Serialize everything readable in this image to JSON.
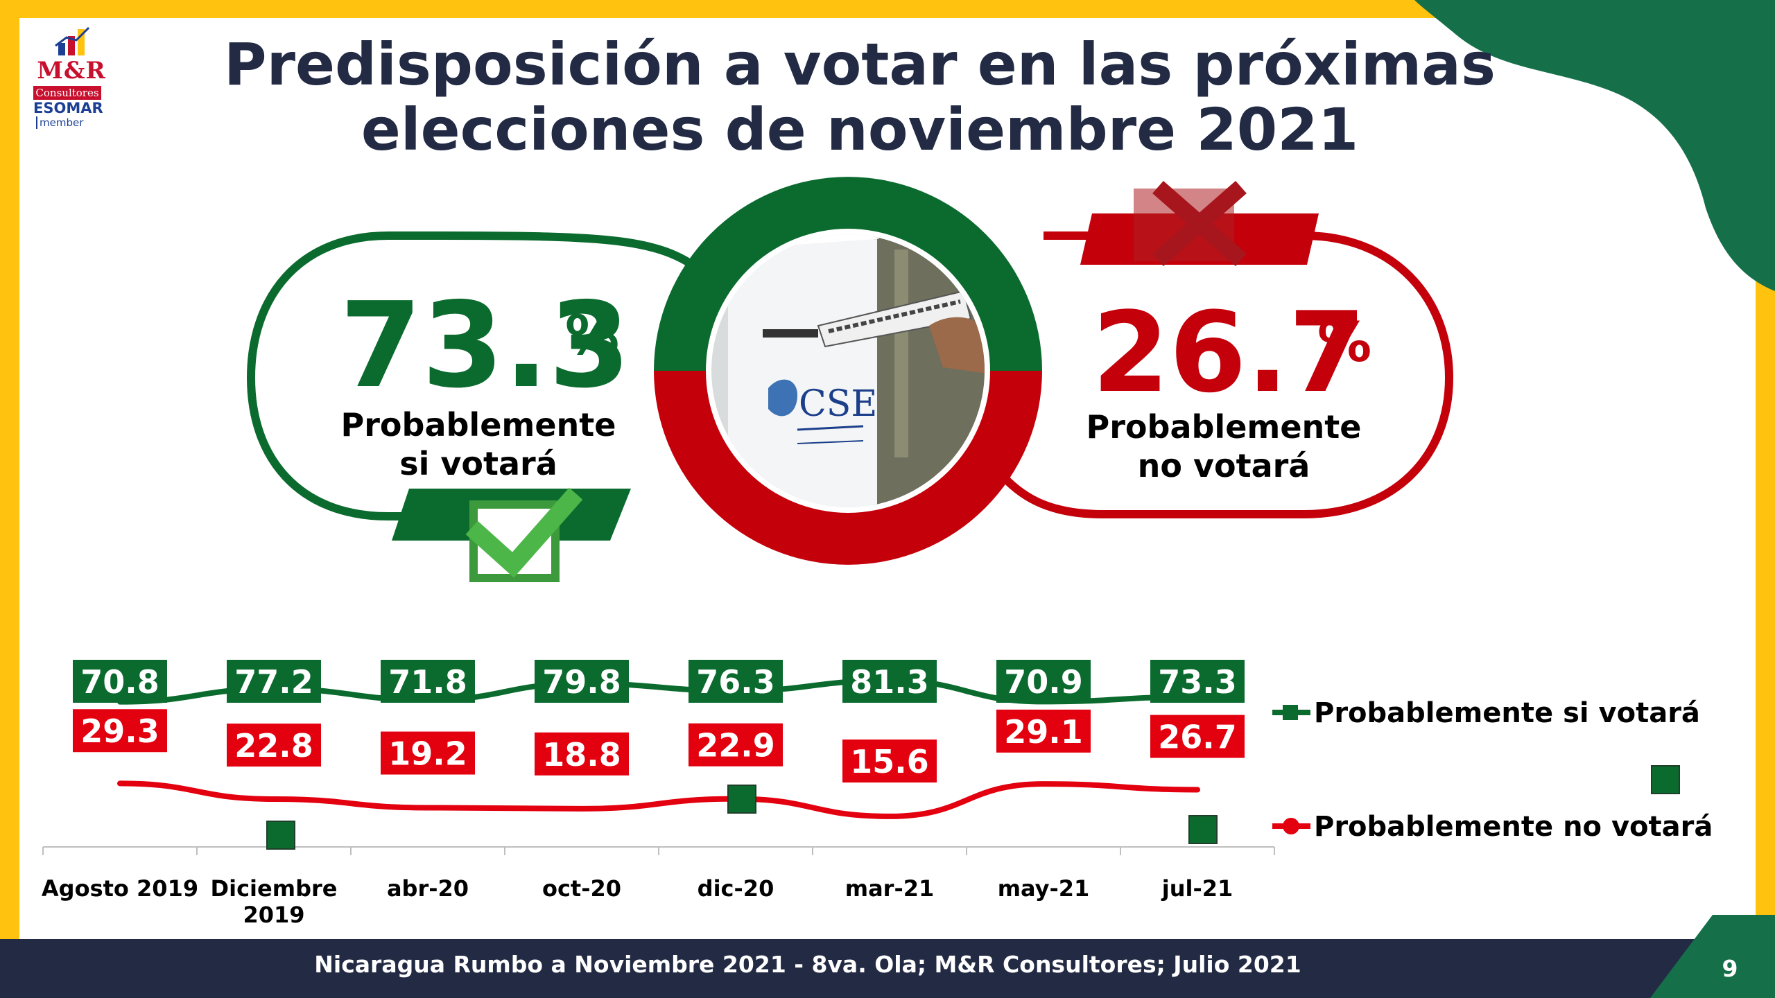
{
  "logo": {
    "brand": "M&R",
    "sub": "Consultores",
    "esomar": "ESOMAR",
    "member": "member"
  },
  "title": "Predisposición a votar en las próximas elecciones de noviembre 2021",
  "kpi_yes": {
    "value": "73.3",
    "unit": "%",
    "label": "Probablemente si votará",
    "color": "#0b6b2e"
  },
  "kpi_no": {
    "value": "26.7",
    "unit": "%",
    "label": "Probablemente no votará",
    "color": "#c4000b"
  },
  "photo_sign": "CSE",
  "chart_data": {
    "type": "line",
    "x": [
      "Agosto 2019",
      "Diciembre 2019",
      "abr-20",
      "oct-20",
      "dic-20",
      "mar-21",
      "may-21",
      "jul-21"
    ],
    "series": [
      {
        "name": "Probablemente si votará",
        "color": "#0b6b2e",
        "values": [
          70.8,
          77.2,
          71.8,
          79.8,
          76.3,
          81.3,
          70.9,
          73.3
        ],
        "labels": [
          "70.8",
          "77.2",
          "71.8",
          "79.8",
          "76.3",
          "81.3",
          "70.9",
          "73.3"
        ]
      },
      {
        "name": "Probablemente no votará",
        "color": "#e3000f",
        "values": [
          29.3,
          22.8,
          19.2,
          18.8,
          22.9,
          15.6,
          29.1,
          26.7
        ],
        "labels": [
          "29.3",
          "22.8",
          "19.2",
          "18.8",
          "22.9",
          "15.6",
          "29.1",
          "26.7"
        ]
      }
    ],
    "legend_position": "right",
    "grid": false
  },
  "footer": {
    "text": "Nicaragua Rumbo a Noviembre 2021 -  8va. Ola; M&R Consultores; Julio 2021",
    "page": "9"
  }
}
